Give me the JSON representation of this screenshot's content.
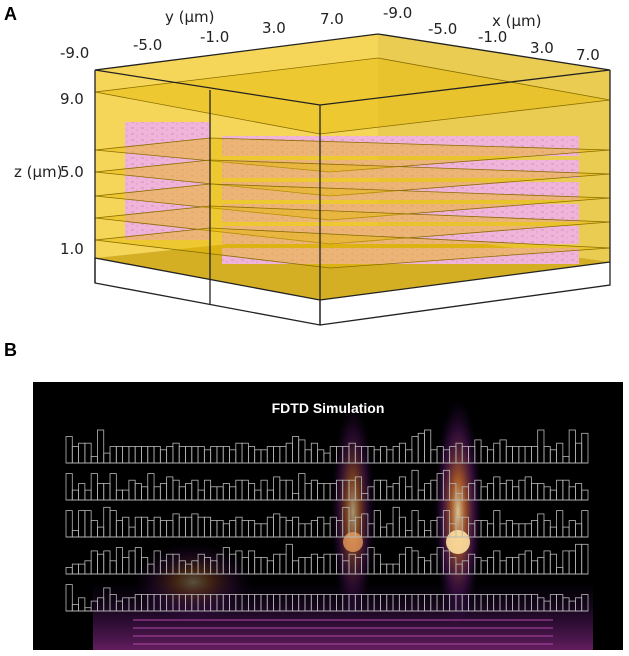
{
  "panel_a": {
    "letter": "A",
    "y_axis_label": "y (µm)",
    "x_axis_label": "x (µm)",
    "z_axis_label": "z (µm)",
    "y_ticks": [
      "-9.0",
      "-5.0",
      "-1.0",
      "3.0",
      "7.0"
    ],
    "x_ticks": [
      "-9.0",
      "-5.0",
      "-1.0",
      "3.0",
      "7.0"
    ],
    "z_ticks": [
      "9.0",
      "5.0",
      "1.0"
    ],
    "colors": {
      "slab": "#e6b800",
      "structure": "#f0b3d9",
      "frame": "#222222"
    }
  },
  "panel_b": {
    "letter": "B",
    "title": "FDTD Simulation",
    "rows": [
      [
        8,
        5,
        6,
        6,
        2,
        10,
        3,
        5,
        5,
        5,
        5,
        5,
        5,
        5,
        5,
        4,
        5,
        6,
        5,
        5,
        5,
        5,
        4,
        5,
        5,
        5,
        4,
        6,
        6,
        5,
        4,
        4,
        5,
        5,
        5,
        6,
        8,
        7,
        4,
        6,
        4,
        3,
        5,
        5,
        5,
        6,
        5,
        5,
        5,
        4,
        5,
        4,
        5,
        6,
        4,
        8,
        9,
        10,
        4,
        5,
        4,
        5,
        6,
        5,
        5,
        7,
        5,
        4,
        6,
        7,
        5,
        5,
        5,
        5,
        5,
        10,
        5,
        4,
        6,
        2,
        10,
        6,
        9
      ],
      [
        8,
        3,
        5,
        3,
        8,
        5,
        5,
        8,
        3,
        3,
        6,
        5,
        4,
        8,
        4,
        5,
        7,
        6,
        4,
        5,
        6,
        3,
        6,
        4,
        4,
        5,
        4,
        6,
        6,
        5,
        3,
        6,
        3,
        7,
        6,
        6,
        2,
        8,
        5,
        6,
        5,
        5,
        5,
        6,
        6,
        6,
        7,
        2,
        4,
        6,
        6,
        4,
        5,
        7,
        4,
        9,
        3,
        5,
        6,
        8,
        9,
        5,
        2,
        4,
        5,
        6,
        4,
        5,
        7,
        5,
        6,
        4,
        6,
        7,
        5,
        5,
        4,
        3,
        6,
        6,
        4,
        5,
        3
      ],
      [
        8,
        2,
        8,
        8,
        5,
        3,
        9,
        8,
        5,
        6,
        3,
        6,
        6,
        5,
        6,
        5,
        5,
        7,
        6,
        6,
        7,
        6,
        6,
        5,
        5,
        4,
        5,
        6,
        5,
        5,
        4,
        4,
        6,
        7,
        6,
        5,
        6,
        4,
        4,
        5,
        6,
        4,
        6,
        5,
        9,
        5,
        6,
        7,
        4,
        8,
        3,
        4,
        9,
        6,
        2,
        8,
        5,
        2,
        5,
        6,
        8,
        4,
        6,
        6,
        4,
        5,
        5,
        4,
        8,
        4,
        5,
        4,
        4,
        4,
        5,
        7,
        5,
        3,
        8,
        3,
        5,
        4,
        8
      ],
      [
        2,
        3,
        3,
        4,
        7,
        6,
        7,
        4,
        8,
        5,
        7,
        8,
        5,
        3,
        7,
        4,
        6,
        6,
        4,
        3,
        4,
        6,
        5,
        4,
        6,
        8,
        6,
        7,
        5,
        7,
        5,
        5,
        4,
        6,
        6,
        9,
        4,
        5,
        5,
        6,
        5,
        6,
        6,
        6,
        4,
        6,
        5,
        6,
        8,
        6,
        3,
        3,
        3,
        6,
        8,
        7,
        5,
        4,
        6,
        8,
        7,
        5,
        3,
        4,
        6,
        5,
        4,
        5,
        7,
        4,
        5,
        5,
        6,
        7,
        4,
        5,
        7,
        6,
        2,
        7,
        7,
        9,
        9
      ],
      [
        8,
        2,
        4,
        1,
        3,
        4,
        7,
        5,
        3,
        4,
        4,
        5,
        5,
        5,
        5,
        5,
        5,
        5,
        5,
        5,
        5,
        5,
        5,
        5,
        5,
        5,
        5,
        5,
        5,
        5,
        5,
        5,
        5,
        5,
        5,
        5,
        5,
        5,
        5,
        5,
        5,
        5,
        5,
        5,
        5,
        5,
        5,
        5,
        5,
        5,
        5,
        5,
        5,
        5,
        5,
        5,
        5,
        5,
        5,
        5,
        5,
        5,
        5,
        5,
        5,
        5,
        5,
        5,
        5,
        5,
        5,
        5,
        5,
        5,
        5,
        4,
        3,
        5,
        5,
        4,
        3,
        4,
        5
      ]
    ],
    "colors": {
      "background": "#000000",
      "bars": "#b8b8b8",
      "glow": "#f3a34a"
    }
  }
}
